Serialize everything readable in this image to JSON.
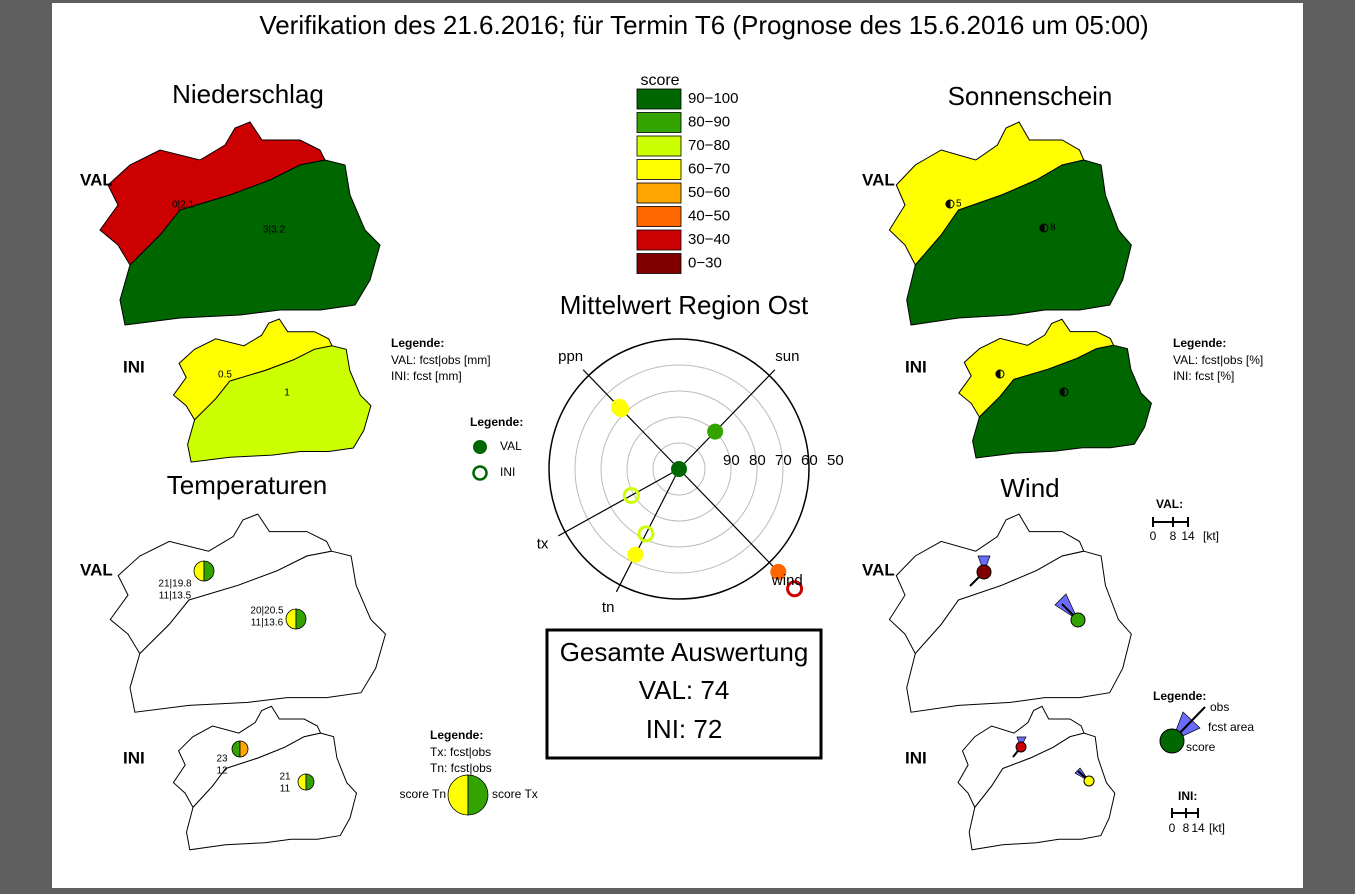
{
  "title": "Verifikation des 21.6.2016; für Termin T6 (Prognose des 15.6.2016 um 05:00)",
  "score_legend": {
    "title": "score",
    "items": [
      {
        "label": "90−100",
        "color": "#006600"
      },
      {
        "label": "80−90",
        "color": "#33a300"
      },
      {
        "label": "70−80",
        "color": "#ccff00"
      },
      {
        "label": "60−70",
        "color": "#ffff00"
      },
      {
        "label": "50−60",
        "color": "#ffa500"
      },
      {
        "label": "40−50",
        "color": "#ff6600"
      },
      {
        "label": "30−40",
        "color": "#cc0000"
      },
      {
        "label": "0−30",
        "color": "#800000"
      }
    ]
  },
  "maps": {
    "niederschlag": {
      "title": "Niederschlag",
      "val": {
        "label": "VAL",
        "regions": [
          {
            "color": "#cc0000",
            "labels": [
              "0|2.1"
            ]
          },
          {
            "color": "#006600",
            "labels": [
              "3|3.2"
            ]
          }
        ]
      },
      "ini": {
        "label": "INI",
        "regions": [
          {
            "color": "#ffff00",
            "labels": [
              "0.5"
            ]
          },
          {
            "color": "#ccff00",
            "labels": [
              "1"
            ]
          }
        ]
      },
      "legend": {
        "title": "Legende:",
        "lines": [
          "VAL: fcst|obs [mm]",
          "INI: fcst [mm]"
        ]
      }
    },
    "sonnenschein": {
      "title": "Sonnenschein",
      "val": {
        "label": "VAL",
        "regions": [
          {
            "color": "#ffff00",
            "labels": [
              "5"
            ]
          },
          {
            "color": "#006600",
            "labels": [
              "8"
            ]
          }
        ]
      },
      "ini": {
        "label": "INI",
        "regions": [
          {
            "color": "#ffff00",
            "labels": []
          },
          {
            "color": "#006600",
            "labels": []
          }
        ]
      },
      "legend": {
        "title": "Legende:",
        "lines": [
          "VAL: fcst|obs [%]",
          "INI: fcst [%]"
        ]
      }
    },
    "temperaturen": {
      "title": "Temperaturen",
      "val": {
        "label": "VAL",
        "regions": [
          {
            "color": "#ffffff",
            "labels": [
              "21|19.8",
              "11|13.5"
            ],
            "pie": [
              "#ffff00",
              "#33a300"
            ]
          },
          {
            "color": "#ffffff",
            "labels": [
              "20|20.5",
              "11|13.6"
            ],
            "pie": [
              "#ffff00",
              "#33a300"
            ]
          }
        ]
      },
      "ini": {
        "label": "INI",
        "regions": [
          {
            "color": "#ffffff",
            "labels": [
              "23",
              "12"
            ],
            "pie": [
              "#33a300",
              "#ffa500"
            ]
          },
          {
            "color": "#ffffff",
            "labels": [
              "21",
              "11"
            ],
            "pie": [
              "#ffff00",
              "#33a300"
            ]
          }
        ]
      },
      "legend": {
        "title": "Legende:",
        "lines": [
          "Tx: fcst|obs",
          "Tn: fcst|obs"
        ],
        "left": "score Tn",
        "right": "score Tx",
        "pie": [
          "#ffff00",
          "#33a300"
        ]
      }
    },
    "wind": {
      "title": "Wind",
      "val": {
        "label": "VAL",
        "regions": [
          {
            "color": "#ffffff",
            "labels": []
          },
          {
            "color": "#ffffff",
            "labels": []
          }
        ]
      },
      "ini": {
        "label": "INI",
        "regions": [
          {
            "color": "#ffffff",
            "labels": []
          },
          {
            "color": "#ffffff",
            "labels": []
          }
        ]
      },
      "legend": {
        "title": "Legende:",
        "lines": [
          "obs",
          "fcst area",
          "score"
        ]
      },
      "scale_val": {
        "title": "VAL:",
        "ticks": [
          "0",
          "8",
          "14",
          "[kt]"
        ]
      },
      "scale_ini": {
        "title": "INI:",
        "ticks": [
          "0",
          "8",
          "14",
          "[kt]"
        ]
      }
    }
  },
  "chart_data": {
    "type": "radar",
    "title": "Mittelwert Region Ost",
    "categories": [
      "ppn",
      "sun",
      "wind",
      "tn",
      "tx"
    ],
    "rlim": [
      100,
      50
    ],
    "rticks": [
      90,
      80,
      70,
      60,
      50
    ],
    "legend_title": "Legende:",
    "series": [
      {
        "name": "VAL",
        "color": "#006600",
        "values": [
          68,
          80,
          45,
          63,
          100
        ]
      },
      {
        "name": "INI",
        "color": "#006600",
        "values": [
          67,
          null,
          36,
          72,
          79
        ]
      }
    ]
  },
  "summary": {
    "title": "Gesamte Auswertung",
    "lines": [
      "VAL: 74",
      "INI: 72"
    ]
  }
}
